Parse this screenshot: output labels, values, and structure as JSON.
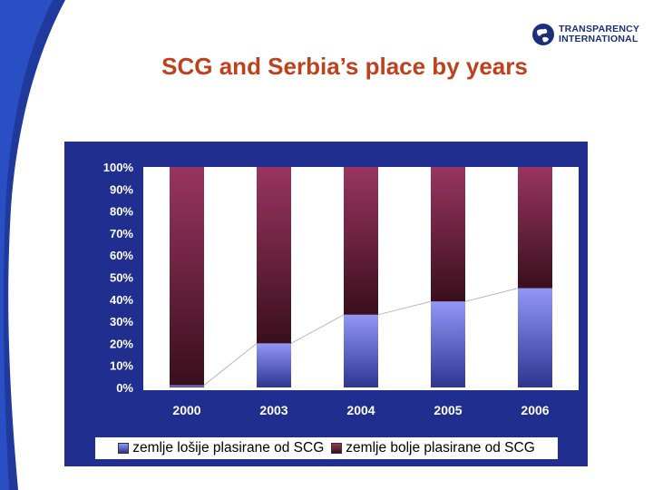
{
  "slide": {
    "title": "SCG and Serbia’s place by years",
    "logo": {
      "line1": "TRANSPARENCY",
      "line2": "INTERNATIONAL"
    }
  },
  "colors": {
    "title": "#c0401e",
    "panel": "#1f2e8f",
    "lower_series": "#8a8ff0",
    "upper_series": "#8e3358",
    "logo": "#1b2f7a"
  },
  "chart_data": {
    "type": "bar",
    "stacked": "percent",
    "categories": [
      "2000",
      "2003",
      "2004",
      "2005",
      "2006"
    ],
    "series": [
      {
        "name": "zemlje lošije plasirane od SCG",
        "values": [
          1,
          20,
          33,
          39,
          45
        ]
      },
      {
        "name": "zemlje bolje plasirane od SCG",
        "values": [
          99,
          80,
          67,
          61,
          55
        ]
      }
    ],
    "yticks": [
      "0%",
      "10%",
      "20%",
      "30%",
      "40%",
      "50%",
      "60%",
      "70%",
      "80%",
      "90%",
      "100%"
    ],
    "ylim": [
      0,
      100
    ],
    "series_lines": true,
    "legend_position": "bottom",
    "grid": false
  }
}
